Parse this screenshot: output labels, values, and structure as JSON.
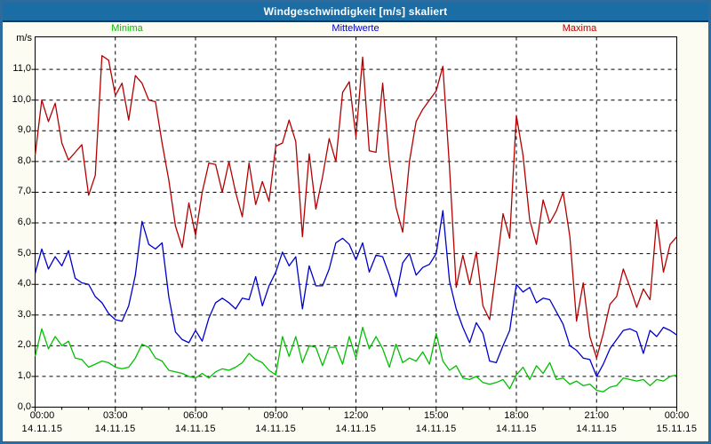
{
  "window": {
    "title": "Windgeschwindigkeit [m/s] skaliert"
  },
  "colors": {
    "frame": "#2b6b9d",
    "title_bar_bg": "#1b6da6",
    "title_bar_border": "#0d3a5f",
    "panel_bg": "#fcfcf2",
    "plot_bg": "#ffffff",
    "grid": "#000000"
  },
  "chart_data": {
    "type": "line",
    "title": "Windgeschwindigkeit [m/s] skaliert",
    "ylabel": "m/s",
    "ylim": [
      0,
      12
    ],
    "grid": "dashed",
    "legend_position": "top",
    "x_start_hour": 0,
    "x_end_hour": 24,
    "x_step_hours": 0.25,
    "y_ticks": [
      "0,0",
      "1,0",
      "2,0",
      "3,0",
      "4,0",
      "5,0",
      "6,0",
      "7,0",
      "8,0",
      "9,0",
      "10,0",
      "11,0"
    ],
    "x_ticks": [
      {
        "time": "00:00",
        "date": "14.11.15"
      },
      {
        "time": "03:00",
        "date": "14.11.15"
      },
      {
        "time": "06:00",
        "date": "14.11.15"
      },
      {
        "time": "09:00",
        "date": "14.11.15"
      },
      {
        "time": "12:00",
        "date": "14.11.15"
      },
      {
        "time": "15:00",
        "date": "14.11.15"
      },
      {
        "time": "18:00",
        "date": "14.11.15"
      },
      {
        "time": "21:00",
        "date": "14.11.15"
      },
      {
        "time": "00:00",
        "date": "15.11.15"
      }
    ],
    "series": [
      {
        "name": "Minima",
        "color": "#00c000",
        "values": [
          1.65,
          2.55,
          1.9,
          2.3,
          2.0,
          2.15,
          1.6,
          1.55,
          1.3,
          1.4,
          1.5,
          1.45,
          1.3,
          1.25,
          1.3,
          1.6,
          2.05,
          1.95,
          1.6,
          1.5,
          1.2,
          1.15,
          1.1,
          1.0,
          0.95,
          1.1,
          0.95,
          1.15,
          1.25,
          1.2,
          1.3,
          1.45,
          1.75,
          1.55,
          1.45,
          1.2,
          1.05,
          2.3,
          1.65,
          2.3,
          1.45,
          2.0,
          1.95,
          1.35,
          1.95,
          1.95,
          1.4,
          2.3,
          1.6,
          2.6,
          1.9,
          2.3,
          1.9,
          1.3,
          2.05,
          1.45,
          1.6,
          1.5,
          1.8,
          1.4,
          2.4,
          1.5,
          1.2,
          1.35,
          0.95,
          0.9,
          1.0,
          0.8,
          0.75,
          0.8,
          0.9,
          0.6,
          1.05,
          1.3,
          0.9,
          1.35,
          1.1,
          1.45,
          0.9,
          0.95,
          0.75,
          0.85,
          0.7,
          0.75,
          0.55,
          0.5,
          0.65,
          0.7,
          0.95,
          0.9,
          0.85,
          0.9,
          0.7,
          0.9,
          0.85,
          1.0,
          1.05
        ]
      },
      {
        "name": "Mittelwerte",
        "color": "#0000cc",
        "values": [
          4.35,
          5.15,
          4.5,
          4.9,
          4.6,
          5.1,
          4.2,
          4.05,
          4.0,
          3.6,
          3.4,
          3.05,
          2.85,
          2.8,
          3.3,
          4.3,
          6.05,
          5.3,
          5.15,
          5.35,
          3.6,
          2.45,
          2.2,
          2.1,
          2.5,
          2.15,
          2.9,
          3.4,
          3.55,
          3.4,
          3.2,
          3.55,
          3.5,
          4.25,
          3.3,
          3.95,
          4.4,
          5.05,
          4.6,
          4.9,
          3.2,
          4.6,
          3.95,
          3.95,
          4.5,
          5.35,
          5.5,
          5.3,
          4.8,
          5.35,
          4.4,
          4.95,
          4.9,
          4.3,
          3.6,
          4.7,
          5.0,
          4.3,
          4.55,
          4.65,
          5.0,
          6.4,
          4.1,
          3.2,
          2.6,
          2.1,
          2.75,
          2.4,
          1.5,
          1.45,
          2.0,
          2.5,
          4.0,
          3.75,
          3.9,
          3.4,
          3.55,
          3.5,
          3.1,
          2.7,
          2.0,
          1.85,
          1.6,
          1.55,
          1.0,
          1.4,
          1.9,
          2.2,
          2.5,
          2.55,
          2.45,
          1.75,
          2.5,
          2.3,
          2.6,
          2.5,
          2.35
        ]
      },
      {
        "name": "Maxima",
        "color": "#b40000",
        "values": [
          8.2,
          10.0,
          9.3,
          9.9,
          8.6,
          8.05,
          8.3,
          8.55,
          6.9,
          7.55,
          11.45,
          11.3,
          10.15,
          10.55,
          9.35,
          10.8,
          10.55,
          10.0,
          9.95,
          8.6,
          7.4,
          5.9,
          5.2,
          6.65,
          5.6,
          7.0,
          7.95,
          7.9,
          7.0,
          8.0,
          7.0,
          6.2,
          7.95,
          6.6,
          7.35,
          6.7,
          8.5,
          8.6,
          9.35,
          8.65,
          5.55,
          8.25,
          6.45,
          7.5,
          8.75,
          8.0,
          10.25,
          10.6,
          8.8,
          11.4,
          8.35,
          8.3,
          10.55,
          8.0,
          6.5,
          5.7,
          8.0,
          9.3,
          9.7,
          10.0,
          10.3,
          11.1,
          7.8,
          3.9,
          4.95,
          4.0,
          5.05,
          3.3,
          2.85,
          4.5,
          6.3,
          5.5,
          9.5,
          8.2,
          6.1,
          5.3,
          6.75,
          6.0,
          6.4,
          7.0,
          5.55,
          2.8,
          4.05,
          2.3,
          1.6,
          2.4,
          3.35,
          3.6,
          4.5,
          3.9,
          3.25,
          3.85,
          3.5,
          6.1,
          4.4,
          5.3,
          5.55
        ]
      }
    ]
  }
}
